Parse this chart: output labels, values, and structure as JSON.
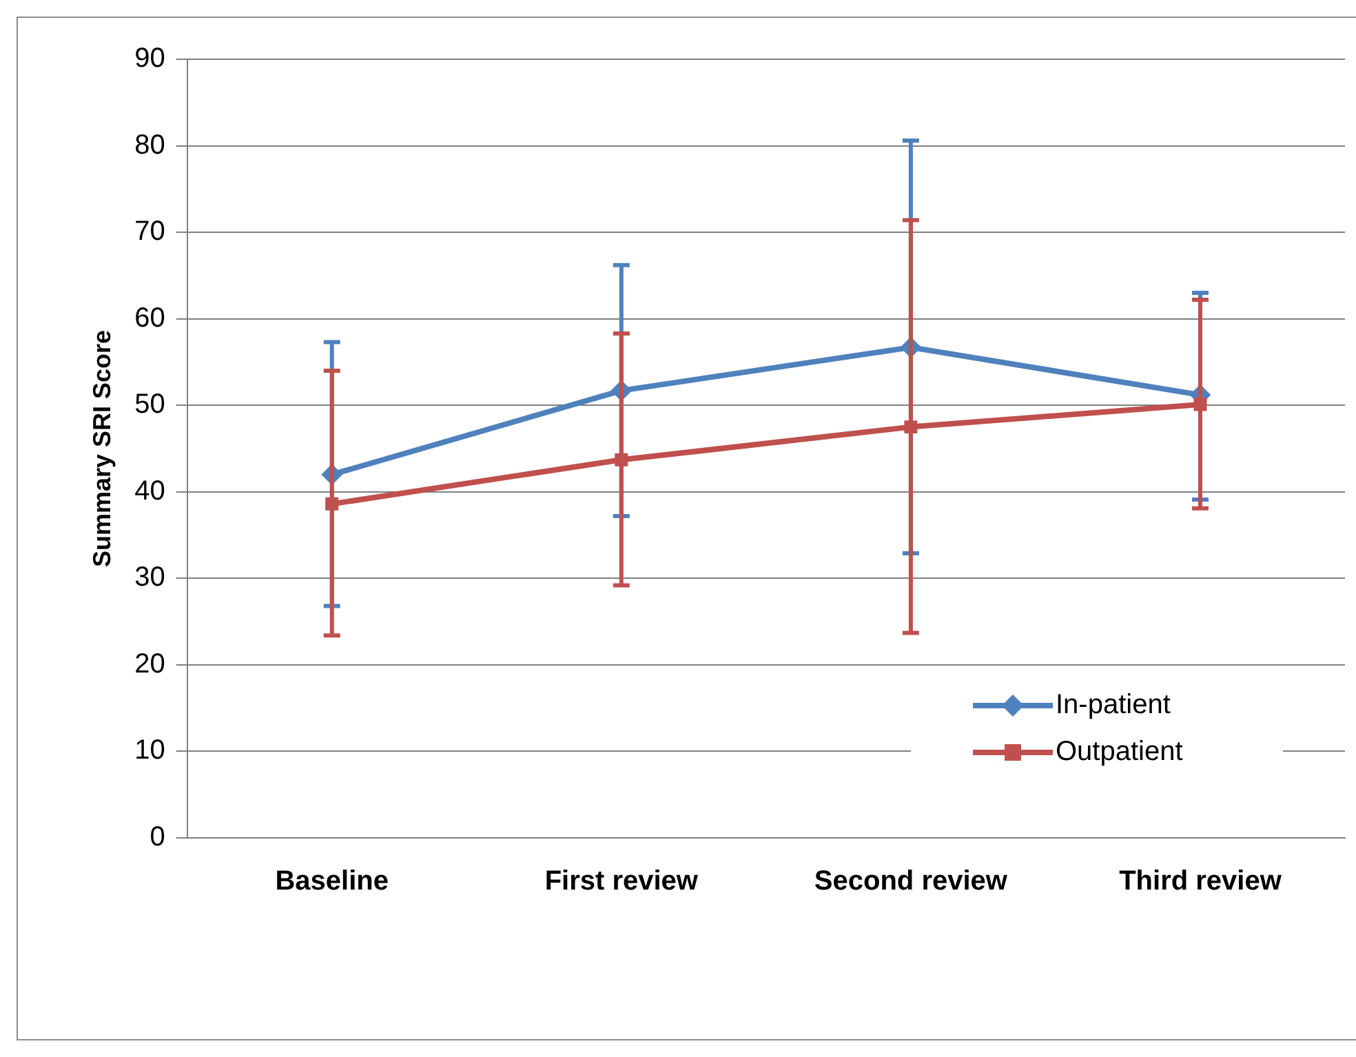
{
  "chart_data": {
    "type": "line",
    "ylabel": "Summary SRI Score",
    "categories": [
      "Baseline",
      "First review",
      "Second review",
      "Third review"
    ],
    "series": [
      {
        "name": "In-patient",
        "color": "#4f81bd",
        "marker": "diamond",
        "values": [
          42.0,
          51.7,
          56.7,
          51.2
        ],
        "errors": [
          [
            26.8,
            57.3
          ],
          [
            37.2,
            66.2
          ],
          [
            32.9,
            80.6
          ],
          [
            39.1,
            63.0
          ]
        ]
      },
      {
        "name": "Outpatient",
        "color": "#c0504d",
        "marker": "square",
        "values": [
          38.6,
          43.7,
          47.5,
          50.1
        ],
        "errors": [
          [
            23.4,
            54.0
          ],
          [
            29.2,
            58.3
          ],
          [
            23.7,
            71.4
          ],
          [
            38.1,
            62.2
          ]
        ]
      }
    ],
    "ylim": [
      0,
      90
    ],
    "yticks": [
      0,
      10,
      20,
      30,
      40,
      50,
      60,
      70,
      80,
      90
    ],
    "grid": "y",
    "legend": "bottom right",
    "line_style": "solid"
  }
}
